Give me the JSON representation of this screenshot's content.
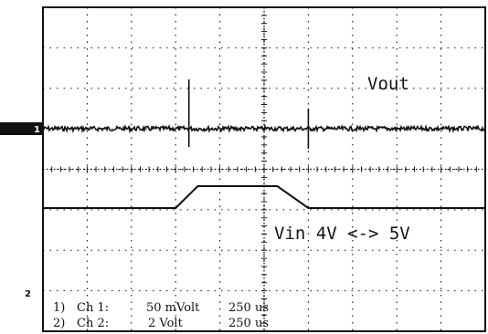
{
  "chart_data": {
    "type": "line",
    "series": [
      {
        "name": "Vout",
        "marker": "1",
        "trace": "noisy flat with switching spikes",
        "spike_divisions": [
          3.3,
          6.0
        ]
      },
      {
        "name": "Vin 4V <-> 5V",
        "marker": "2",
        "x_divisions": [
          0,
          3.0,
          3.5,
          5.3,
          6.0,
          10
        ],
        "levels": [
          0,
          0,
          1,
          1,
          0,
          0
        ]
      }
    ],
    "annotations": {
      "vout_label": "Vout",
      "vin_label": "Vin 4V <-> 5V"
    },
    "channels": [
      {
        "num": "1)",
        "name": "Ch 1:",
        "scale": "50 mVolt",
        "time": "250 us"
      },
      {
        "num": "2)",
        "name": "Ch 2:",
        "scale": "2 Volt",
        "time": "250 us"
      }
    ],
    "grid": true,
    "x_divisions": 10,
    "y_divisions": 8,
    "colors": {
      "trace": "#111111",
      "grid": "#111111",
      "background": "#ffffff"
    }
  }
}
